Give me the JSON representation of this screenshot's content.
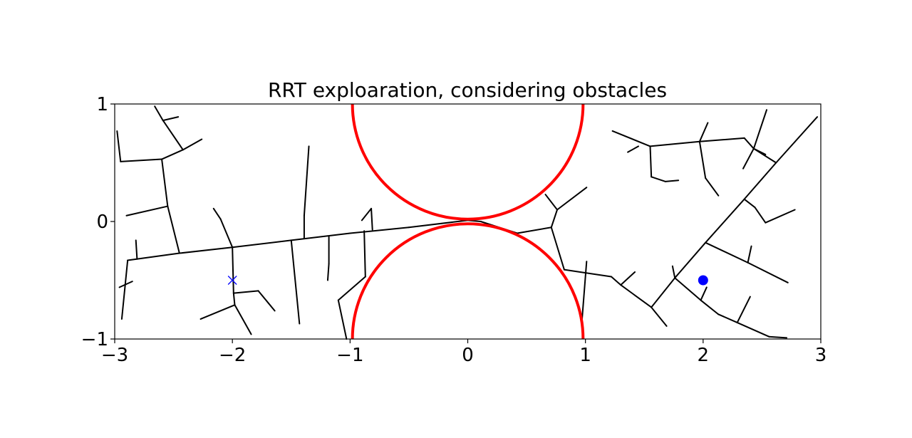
{
  "chart_data": {
    "type": "scatter",
    "title": "RRT exploaration, considering obstacles",
    "xlabel": "",
    "ylabel": "",
    "xlim": [
      -3,
      3
    ],
    "ylim": [
      -1,
      1
    ],
    "xticks": [
      {
        "value": -3,
        "label": "−3"
      },
      {
        "value": -2,
        "label": "−2"
      },
      {
        "value": -1,
        "label": "−1"
      },
      {
        "value": 0,
        "label": "0"
      },
      {
        "value": 1,
        "label": "1"
      },
      {
        "value": 2,
        "label": "2"
      },
      {
        "value": 3,
        "label": "3"
      }
    ],
    "yticks": [
      {
        "value": -1,
        "label": "−1"
      },
      {
        "value": 0,
        "label": "0"
      },
      {
        "value": 1,
        "label": "1"
      }
    ],
    "grid": false,
    "colors": {
      "tree": "#000000",
      "obstacle": "#ff0000",
      "marker": "#0000ff"
    },
    "obstacles": [
      {
        "name": "upper-obstacle",
        "center": [
          0,
          1
        ],
        "radius": 0.98
      },
      {
        "name": "lower-obstacle",
        "center": [
          0,
          -1
        ],
        "radius": 0.98
      }
    ],
    "goal": {
      "x": -2.0,
      "y": -0.5,
      "marker": "x"
    },
    "start": {
      "x": 2.0,
      "y": -0.5,
      "marker": "o"
    },
    "tree_edges": [
      [
        [
          -2.89,
          -0.33
        ],
        [
          -2.45,
          -0.27
        ]
      ],
      [
        [
          -2.45,
          -0.27
        ],
        [
          -2.0,
          -0.22
        ]
      ],
      [
        [
          -2.0,
          -0.22
        ],
        [
          -1.5,
          -0.16
        ]
      ],
      [
        [
          -1.5,
          -0.16
        ],
        [
          -1.0,
          -0.1
        ]
      ],
      [
        [
          -1.0,
          -0.1
        ],
        [
          -0.5,
          -0.05
        ]
      ],
      [
        [
          -0.5,
          -0.05
        ],
        [
          0.0,
          0.01
        ]
      ],
      [
        [
          0.0,
          0.01
        ],
        [
          0.11,
          0.0
        ]
      ],
      [
        [
          0.11,
          0.0
        ],
        [
          0.42,
          -0.1
        ]
      ],
      [
        [
          0.42,
          -0.1
        ],
        [
          0.71,
          -0.05
        ]
      ],
      [
        [
          -2.89,
          -0.33
        ],
        [
          -2.94,
          -0.83
        ]
      ],
      [
        [
          -2.96,
          -0.56
        ],
        [
          -2.85,
          -0.51
        ]
      ],
      [
        [
          -2.81,
          -0.32
        ],
        [
          -2.82,
          -0.16
        ]
      ],
      [
        [
          -2.45,
          -0.27
        ],
        [
          -2.55,
          0.13
        ]
      ],
      [
        [
          -2.55,
          0.13
        ],
        [
          -2.9,
          0.05
        ]
      ],
      [
        [
          -2.55,
          0.13
        ],
        [
          -2.6,
          0.53
        ]
      ],
      [
        [
          -2.6,
          0.53
        ],
        [
          -2.95,
          0.51
        ]
      ],
      [
        [
          -2.95,
          0.51
        ],
        [
          -2.98,
          0.77
        ]
      ],
      [
        [
          -2.6,
          0.53
        ],
        [
          -2.42,
          0.61
        ]
      ],
      [
        [
          -2.42,
          0.61
        ],
        [
          -2.26,
          0.7
        ]
      ],
      [
        [
          -2.42,
          0.61
        ],
        [
          -2.59,
          0.86
        ]
      ],
      [
        [
          -2.59,
          0.86
        ],
        [
          -2.66,
          0.98
        ]
      ],
      [
        [
          -2.59,
          0.86
        ],
        [
          -2.46,
          0.89
        ]
      ],
      [
        [
          -2.0,
          -0.22
        ],
        [
          -2.1,
          0.02
        ]
      ],
      [
        [
          -2.1,
          0.02
        ],
        [
          -2.16,
          0.11
        ]
      ],
      [
        [
          -2.0,
          -0.22
        ],
        [
          -1.99,
          -0.61
        ]
      ],
      [
        [
          -1.99,
          -0.61
        ],
        [
          -1.78,
          -0.59
        ]
      ],
      [
        [
          -1.78,
          -0.59
        ],
        [
          -1.64,
          -0.76
        ]
      ],
      [
        [
          -1.99,
          -0.61
        ],
        [
          -1.98,
          -0.71
        ]
      ],
      [
        [
          -1.98,
          -0.71
        ],
        [
          -2.27,
          -0.83
        ]
      ],
      [
        [
          -1.98,
          -0.71
        ],
        [
          -1.84,
          -0.96
        ]
      ],
      [
        [
          -1.5,
          -0.16
        ],
        [
          -1.43,
          -0.87
        ]
      ],
      [
        [
          -1.39,
          -0.14
        ],
        [
          -1.39,
          0.05
        ]
      ],
      [
        [
          -1.39,
          0.05
        ],
        [
          -1.35,
          0.64
        ]
      ],
      [
        [
          -1.18,
          -0.13
        ],
        [
          -1.18,
          -0.36
        ]
      ],
      [
        [
          -1.18,
          -0.36
        ],
        [
          -1.19,
          -0.5
        ]
      ],
      [
        [
          -0.88,
          -0.08
        ],
        [
          -0.87,
          -0.47
        ]
      ],
      [
        [
          -0.87,
          -0.47
        ],
        [
          -1.1,
          -0.67
        ]
      ],
      [
        [
          -1.1,
          -0.67
        ],
        [
          -1.03,
          -1.0
        ]
      ],
      [
        [
          -0.81,
          -0.07
        ],
        [
          -0.82,
          0.11
        ]
      ],
      [
        [
          -0.82,
          0.11
        ],
        [
          -0.9,
          0.01
        ]
      ],
      [
        [
          0.71,
          -0.05
        ],
        [
          0.76,
          0.1
        ]
      ],
      [
        [
          0.76,
          0.1
        ],
        [
          0.66,
          0.23
        ]
      ],
      [
        [
          0.76,
          0.1
        ],
        [
          1.01,
          0.29
        ]
      ],
      [
        [
          0.71,
          -0.05
        ],
        [
          0.82,
          -0.41
        ]
      ],
      [
        [
          0.82,
          -0.41
        ],
        [
          1.22,
          -0.47
        ]
      ],
      [
        [
          1.22,
          -0.47
        ],
        [
          1.3,
          -0.54
        ]
      ],
      [
        [
          1.3,
          -0.54
        ],
        [
          1.42,
          -0.43
        ]
      ],
      [
        [
          1.3,
          -0.54
        ],
        [
          1.56,
          -0.73
        ]
      ],
      [
        [
          1.56,
          -0.73
        ],
        [
          1.69,
          -0.89
        ]
      ],
      [
        [
          1.01,
          -0.34
        ],
        [
          0.97,
          -0.85
        ]
      ],
      [
        [
          1.56,
          -0.73
        ],
        [
          1.76,
          -0.48
        ]
      ],
      [
        [
          1.76,
          -0.48
        ],
        [
          2.02,
          -0.18
        ]
      ],
      [
        [
          2.02,
          -0.18
        ],
        [
          2.35,
          0.19
        ]
      ],
      [
        [
          2.35,
          0.19
        ],
        [
          2.62,
          0.5
        ]
      ],
      [
        [
          2.62,
          0.5
        ],
        [
          2.97,
          0.89
        ]
      ],
      [
        [
          1.76,
          -0.48
        ],
        [
          1.74,
          -0.38
        ]
      ],
      [
        [
          1.76,
          -0.48
        ],
        [
          1.98,
          -0.67
        ]
      ],
      [
        [
          1.98,
          -0.67
        ],
        [
          2.03,
          -0.56
        ]
      ],
      [
        [
          1.98,
          -0.67
        ],
        [
          2.13,
          -0.79
        ]
      ],
      [
        [
          2.13,
          -0.79
        ],
        [
          2.29,
          -0.86
        ]
      ],
      [
        [
          2.29,
          -0.86
        ],
        [
          2.4,
          -0.64
        ]
      ],
      [
        [
          2.29,
          -0.86
        ],
        [
          2.56,
          -0.98
        ]
      ],
      [
        [
          2.56,
          -0.98
        ],
        [
          2.71,
          -0.99
        ]
      ],
      [
        [
          2.02,
          -0.18
        ],
        [
          2.38,
          -0.35
        ]
      ],
      [
        [
          2.38,
          -0.35
        ],
        [
          2.41,
          -0.21
        ]
      ],
      [
        [
          2.38,
          -0.35
        ],
        [
          2.72,
          -0.52
        ]
      ],
      [
        [
          2.35,
          0.19
        ],
        [
          2.44,
          0.12
        ]
      ],
      [
        [
          2.44,
          0.12
        ],
        [
          2.53,
          -0.01
        ]
      ],
      [
        [
          2.53,
          -0.01
        ],
        [
          2.78,
          0.1
        ]
      ],
      [
        [
          2.62,
          0.5
        ],
        [
          2.43,
          0.62
        ]
      ],
      [
        [
          2.43,
          0.62
        ],
        [
          2.53,
          0.57
        ]
      ],
      [
        [
          2.43,
          0.62
        ],
        [
          2.34,
          0.45
        ]
      ],
      [
        [
          2.43,
          0.62
        ],
        [
          2.54,
          0.95
        ]
      ],
      [
        [
          2.35,
          0.71
        ],
        [
          2.43,
          0.62
        ]
      ],
      [
        [
          2.35,
          0.71
        ],
        [
          1.97,
          0.68
        ]
      ],
      [
        [
          1.97,
          0.68
        ],
        [
          2.04,
          0.84
        ]
      ],
      [
        [
          1.97,
          0.68
        ],
        [
          2.02,
          0.37
        ]
      ],
      [
        [
          2.02,
          0.37
        ],
        [
          2.13,
          0.22
        ]
      ],
      [
        [
          1.97,
          0.68
        ],
        [
          1.55,
          0.64
        ]
      ],
      [
        [
          1.55,
          0.64
        ],
        [
          1.56,
          0.38
        ]
      ],
      [
        [
          1.56,
          0.38
        ],
        [
          1.68,
          0.34
        ]
      ],
      [
        [
          1.68,
          0.34
        ],
        [
          1.79,
          0.35
        ]
      ],
      [
        [
          1.55,
          0.64
        ],
        [
          1.23,
          0.77
        ]
      ],
      [
        [
          1.45,
          0.64
        ],
        [
          1.36,
          0.59
        ]
      ]
    ]
  }
}
